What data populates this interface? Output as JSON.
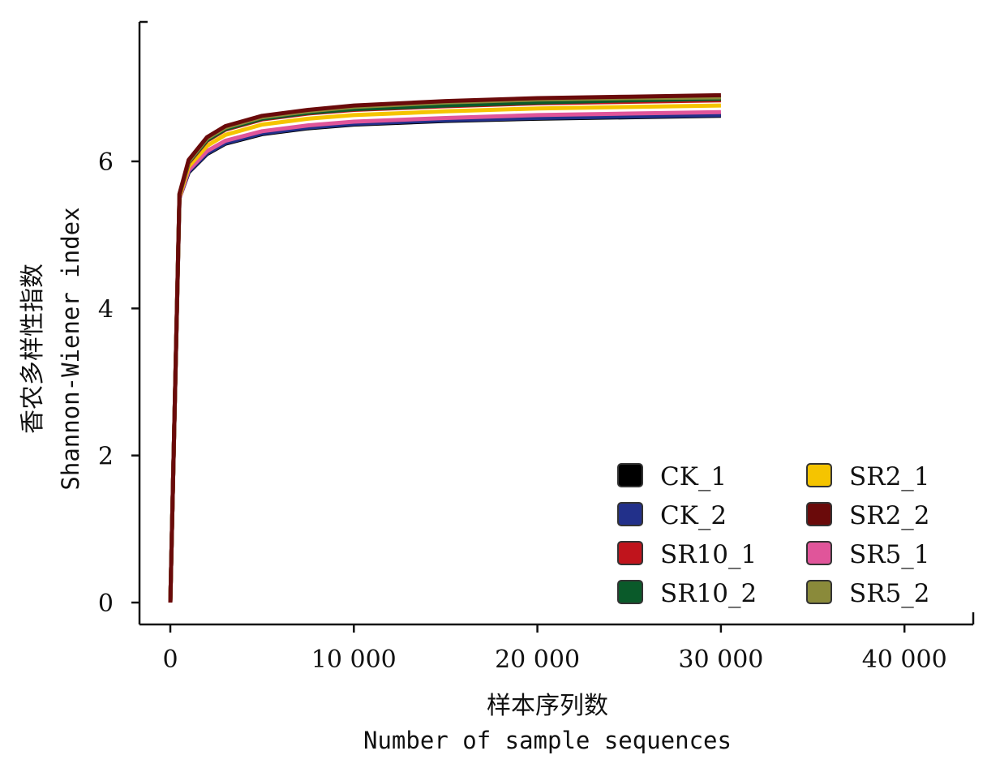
{
  "chart_data": {
    "type": "line",
    "xlabel_cn": "样本序列数",
    "xlabel": "Number of sample sequences",
    "ylabel_cn": "香农多样性指数",
    "ylabel": "Shannon-Wiener index",
    "xlim": [
      -1700,
      44000
    ],
    "ylim": [
      -0.3,
      8.1
    ],
    "xticks": [
      0,
      10000,
      20000,
      30000,
      40000
    ],
    "xtick_labels": [
      "0",
      "10 000",
      "20 000",
      "30 000",
      "40 000"
    ],
    "yticks": [
      0,
      2,
      4,
      6
    ],
    "ytick_labels": [
      "0",
      "2",
      "4",
      "6"
    ],
    "grid": false,
    "legend_position": "bottom-right",
    "x": [
      0,
      500,
      1000,
      2000,
      3000,
      5000,
      7500,
      10000,
      15000,
      20000,
      25000,
      30000
    ],
    "series": [
      {
        "name": "CK_1",
        "color": "#000000",
        "values": [
          0,
          5.5,
          5.85,
          6.1,
          6.24,
          6.37,
          6.45,
          6.5,
          6.55,
          6.58,
          6.6,
          6.62
        ]
      },
      {
        "name": "CK_2",
        "color": "#22308a",
        "values": [
          0,
          5.5,
          5.86,
          6.11,
          6.25,
          6.38,
          6.46,
          6.51,
          6.56,
          6.59,
          6.61,
          6.63
        ]
      },
      {
        "name": "SR10_1",
        "color": "#c0141c",
        "values": [
          0,
          5.55,
          5.98,
          6.28,
          6.43,
          6.57,
          6.65,
          6.7,
          6.75,
          6.79,
          6.81,
          6.83
        ]
      },
      {
        "name": "SR10_2",
        "color": "#0a5a2a",
        "values": [
          0,
          5.55,
          5.99,
          6.29,
          6.44,
          6.58,
          6.66,
          6.71,
          6.76,
          6.8,
          6.83,
          6.85
        ]
      },
      {
        "name": "SR2_1",
        "color": "#f5c400",
        "values": [
          0,
          5.52,
          5.93,
          6.21,
          6.36,
          6.5,
          6.58,
          6.63,
          6.68,
          6.72,
          6.74,
          6.76
        ]
      },
      {
        "name": "SR2_2",
        "color": "#6a0a0a",
        "values": [
          0,
          5.56,
          6.02,
          6.33,
          6.48,
          6.62,
          6.7,
          6.76,
          6.82,
          6.86,
          6.88,
          6.9
        ]
      },
      {
        "name": "SR5_1",
        "color": "#e0559a",
        "values": [
          0,
          5.5,
          5.88,
          6.14,
          6.28,
          6.41,
          6.49,
          6.54,
          6.59,
          6.63,
          6.65,
          6.67
        ]
      },
      {
        "name": "SR5_2",
        "color": "#8a8a3a",
        "values": [
          0,
          5.56,
          6.0,
          6.31,
          6.46,
          6.6,
          6.68,
          6.74,
          6.8,
          6.84,
          6.86,
          6.87
        ]
      }
    ]
  }
}
